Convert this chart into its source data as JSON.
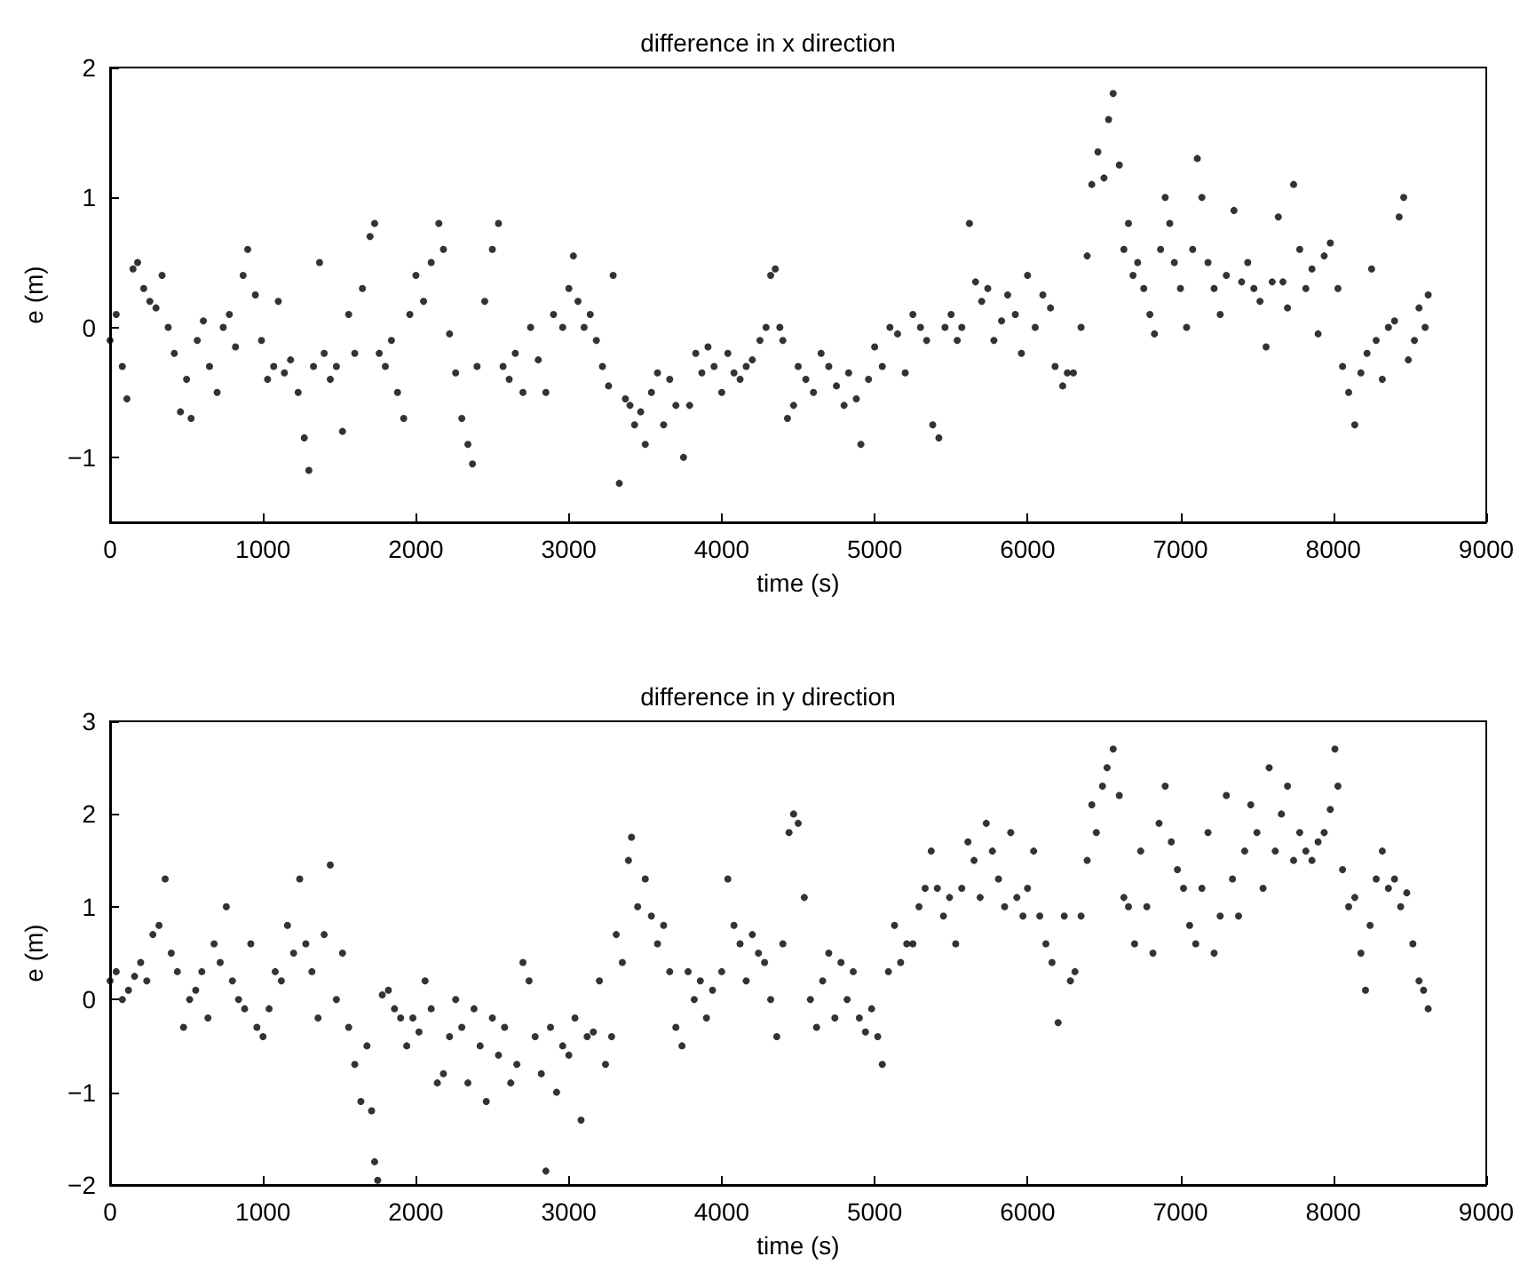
{
  "chart_data": [
    {
      "type": "scatter",
      "title": "difference in x direction",
      "xlabel": "time (s)",
      "ylabel": "e (m)",
      "xlim": [
        0,
        9000
      ],
      "xticks": [
        0,
        1000,
        2000,
        3000,
        4000,
        5000,
        6000,
        7000,
        8000,
        9000
      ],
      "ylim": [
        -1.5,
        2
      ],
      "yticks": [
        -1,
        0,
        1,
        2
      ],
      "grid": false,
      "marker": "circle",
      "series": [
        {
          "color": "#000000",
          "x": [
            0,
            40,
            80,
            110,
            150,
            180,
            220,
            260,
            300,
            340,
            380,
            420,
            460,
            500,
            530,
            570,
            610,
            650,
            700,
            740,
            780,
            820,
            870,
            900,
            950,
            990,
            1030,
            1070,
            1100,
            1140,
            1180,
            1230,
            1270,
            1300,
            1330,
            1370,
            1400,
            1440,
            1480,
            1520,
            1560,
            1600,
            1650,
            1700,
            1730,
            1760,
            1800,
            1840,
            1880,
            1920,
            1960,
            2000,
            2050,
            2100,
            2150,
            2180,
            2220,
            2260,
            2300,
            2340,
            2370,
            2400,
            2450,
            2500,
            2540,
            2570,
            2610,
            2650,
            2700,
            2750,
            2800,
            2850,
            2900,
            2960,
            3000,
            3030,
            3060,
            3100,
            3140,
            3180,
            3220,
            3260,
            3290,
            3330,
            3370,
            3400,
            3430,
            3470,
            3500,
            3540,
            3580,
            3620,
            3660,
            3700,
            3750,
            3790,
            3830,
            3870,
            3910,
            3950,
            4000,
            4040,
            4080,
            4120,
            4160,
            4200,
            4250,
            4290,
            4320,
            4350,
            4380,
            4400,
            4430,
            4470,
            4500,
            4550,
            4600,
            4650,
            4700,
            4750,
            4800,
            4830,
            4880,
            4910,
            4960,
            5000,
            5050,
            5100,
            5150,
            5200,
            5250,
            5300,
            5340,
            5380,
            5420,
            5460,
            5500,
            5540,
            5570,
            5620,
            5660,
            5700,
            5740,
            5780,
            5830,
            5870,
            5920,
            5960,
            6000,
            6050,
            6100,
            6150,
            6180,
            6230,
            6260,
            6300,
            6350,
            6390,
            6420,
            6460,
            6500,
            6530,
            6560,
            6600,
            6630,
            6660,
            6690,
            6720,
            6760,
            6800,
            6830,
            6870,
            6900,
            6930,
            6960,
            7000,
            7040,
            7080,
            7110,
            7140,
            7180,
            7220,
            7260,
            7300,
            7350,
            7400,
            7440,
            7480,
            7520,
            7560,
            7600,
            7640,
            7670,
            7700,
            7740,
            7780,
            7820,
            7860,
            7900,
            7940,
            7980,
            8030,
            8060,
            8100,
            8140,
            8180,
            8220,
            8250,
            8280,
            8320,
            8360,
            8400,
            8430,
            8460,
            8490,
            8530,
            8560,
            8600,
            8620
          ],
          "values": [
            -0.1,
            0.1,
            -0.3,
            -0.55,
            0.45,
            0.5,
            0.3,
            0.2,
            0.15,
            0.4,
            0.0,
            -0.2,
            -0.65,
            -0.4,
            -0.7,
            -0.1,
            0.05,
            -0.3,
            -0.5,
            0.0,
            0.1,
            -0.15,
            0.4,
            0.6,
            0.25,
            -0.1,
            -0.4,
            -0.3,
            0.2,
            -0.35,
            -0.25,
            -0.5,
            -0.85,
            -1.1,
            -0.3,
            0.5,
            -0.2,
            -0.4,
            -0.3,
            -0.8,
            0.1,
            -0.2,
            0.3,
            0.7,
            0.8,
            -0.2,
            -0.3,
            -0.1,
            -0.5,
            -0.7,
            0.1,
            0.4,
            0.2,
            0.5,
            0.8,
            0.6,
            -0.05,
            -0.35,
            -0.7,
            -0.9,
            -1.05,
            -0.3,
            0.2,
            0.6,
            0.8,
            -0.3,
            -0.4,
            -0.2,
            -0.5,
            0.0,
            -0.25,
            -0.5,
            0.1,
            0.0,
            0.3,
            0.55,
            0.2,
            0.0,
            0.1,
            -0.1,
            -0.3,
            -0.45,
            0.4,
            -1.2,
            -0.55,
            -0.6,
            -0.75,
            -0.65,
            -0.9,
            -0.5,
            -0.35,
            -0.75,
            -0.4,
            -0.6,
            -1.0,
            -0.6,
            -0.2,
            -0.35,
            -0.15,
            -0.3,
            -0.5,
            -0.2,
            -0.35,
            -0.4,
            -0.3,
            -0.25,
            -0.1,
            0.0,
            0.4,
            0.45,
            0.0,
            -0.1,
            -0.7,
            -0.6,
            -0.3,
            -0.4,
            -0.5,
            -0.2,
            -0.3,
            -0.45,
            -0.6,
            -0.35,
            -0.55,
            -0.9,
            -0.4,
            -0.15,
            -0.3,
            0.0,
            -0.05,
            -0.35,
            0.1,
            0.0,
            -0.1,
            -0.75,
            -0.85,
            0.0,
            0.1,
            -0.1,
            0.0,
            0.8,
            0.35,
            0.2,
            0.3,
            -0.1,
            0.05,
            0.25,
            0.1,
            -0.2,
            0.4,
            0.0,
            0.25,
            0.15,
            -0.3,
            -0.45,
            -0.35,
            -0.35,
            0.0,
            0.55,
            1.1,
            1.35,
            1.15,
            1.6,
            1.8,
            1.25,
            0.6,
            0.8,
            0.4,
            0.5,
            0.3,
            0.1,
            -0.05,
            0.6,
            1.0,
            0.8,
            0.5,
            0.3,
            0.0,
            0.6,
            1.3,
            1.0,
            0.5,
            0.3,
            0.1,
            0.4,
            0.9,
            0.35,
            0.5,
            0.3,
            0.2,
            -0.15,
            0.35,
            0.85,
            0.35,
            0.15,
            1.1,
            0.6,
            0.3,
            0.45,
            -0.05,
            0.55,
            0.65,
            0.3,
            -0.3,
            -0.5,
            -0.75,
            -0.35,
            -0.2,
            0.45,
            -0.1,
            -0.4,
            0.0,
            0.05,
            0.85,
            1.0,
            -0.25,
            -0.1,
            0.15,
            0.0,
            0.25
          ]
        }
      ]
    },
    {
      "type": "scatter",
      "title": "difference in y direction",
      "xlabel": "time (s)",
      "ylabel": "e (m)",
      "xlim": [
        0,
        9000
      ],
      "xticks": [
        0,
        1000,
        2000,
        3000,
        4000,
        5000,
        6000,
        7000,
        8000,
        9000
      ],
      "ylim": [
        -2,
        3
      ],
      "yticks": [
        -2,
        -1,
        0,
        1,
        2,
        3
      ],
      "grid": false,
      "marker": "circle",
      "series": [
        {
          "color": "#000000",
          "x": [
            0,
            40,
            80,
            120,
            160,
            200,
            240,
            280,
            320,
            360,
            400,
            440,
            480,
            520,
            560,
            600,
            640,
            680,
            720,
            760,
            800,
            840,
            880,
            920,
            960,
            1000,
            1040,
            1080,
            1120,
            1160,
            1200,
            1240,
            1280,
            1320,
            1360,
            1400,
            1440,
            1480,
            1520,
            1560,
            1600,
            1640,
            1680,
            1710,
            1730,
            1750,
            1780,
            1820,
            1860,
            1900,
            1940,
            1980,
            2020,
            2060,
            2100,
            2140,
            2180,
            2220,
            2260,
            2300,
            2340,
            2380,
            2420,
            2460,
            2500,
            2540,
            2580,
            2620,
            2660,
            2700,
            2740,
            2780,
            2820,
            2850,
            2880,
            2920,
            2960,
            3000,
            3040,
            3080,
            3120,
            3160,
            3200,
            3240,
            3280,
            3310,
            3350,
            3390,
            3410,
            3450,
            3500,
            3540,
            3580,
            3620,
            3660,
            3700,
            3740,
            3780,
            3820,
            3860,
            3900,
            3940,
            4000,
            4040,
            4080,
            4120,
            4160,
            4200,
            4240,
            4280,
            4320,
            4360,
            4400,
            4440,
            4470,
            4500,
            4540,
            4580,
            4620,
            4660,
            4700,
            4740,
            4780,
            4820,
            4860,
            4900,
            4940,
            4980,
            5020,
            5050,
            5090,
            5130,
            5170,
            5210,
            5250,
            5290,
            5330,
            5370,
            5410,
            5450,
            5490,
            5530,
            5570,
            5610,
            5650,
            5690,
            5730,
            5770,
            5810,
            5850,
            5890,
            5930,
            5970,
            6000,
            6040,
            6080,
            6120,
            6160,
            6200,
            6240,
            6280,
            6310,
            6350,
            6390,
            6420,
            6450,
            6490,
            6520,
            6560,
            6600,
            6630,
            6660,
            6700,
            6740,
            6780,
            6820,
            6860,
            6900,
            6940,
            6980,
            7020,
            7060,
            7100,
            7140,
            7180,
            7220,
            7260,
            7300,
            7340,
            7380,
            7420,
            7460,
            7500,
            7540,
            7580,
            7620,
            7660,
            7700,
            7740,
            7780,
            7820,
            7860,
            7900,
            7940,
            7980,
            8010,
            8030,
            8060,
            8100,
            8140,
            8180,
            8210,
            8240,
            8280,
            8320,
            8360,
            8400,
            8440,
            8480,
            8520,
            8560,
            8590,
            8620
          ],
          "values": [
            0.2,
            0.3,
            0.0,
            0.1,
            0.25,
            0.4,
            0.2,
            0.7,
            0.8,
            1.3,
            0.5,
            0.3,
            -0.3,
            0.0,
            0.1,
            0.3,
            -0.2,
            0.6,
            0.4,
            1.0,
            0.2,
            0.0,
            -0.1,
            0.6,
            -0.3,
            -0.4,
            -0.1,
            0.3,
            0.2,
            0.8,
            0.5,
            1.3,
            0.6,
            0.3,
            -0.2,
            0.7,
            1.45,
            0.0,
            0.5,
            -0.3,
            -0.7,
            -1.1,
            -0.5,
            -1.2,
            -1.75,
            -1.95,
            0.05,
            0.1,
            -0.1,
            -0.2,
            -0.5,
            -0.2,
            -0.35,
            0.2,
            -0.1,
            -0.9,
            -0.8,
            -0.4,
            0.0,
            -0.3,
            -0.9,
            -0.1,
            -0.5,
            -1.1,
            -0.2,
            -0.6,
            -0.3,
            -0.9,
            -0.7,
            0.4,
            0.2,
            -0.4,
            -0.8,
            -1.85,
            -0.3,
            -1.0,
            -0.5,
            -0.6,
            -0.2,
            -1.3,
            -0.4,
            -0.35,
            0.2,
            -0.7,
            -0.4,
            0.7,
            0.4,
            1.5,
            1.75,
            1.0,
            1.3,
            0.9,
            0.6,
            0.8,
            0.3,
            -0.3,
            -0.5,
            0.3,
            0.0,
            0.2,
            -0.2,
            0.1,
            0.3,
            1.3,
            0.8,
            0.6,
            0.2,
            0.7,
            0.5,
            0.4,
            0.0,
            -0.4,
            0.6,
            1.8,
            2.0,
            1.9,
            1.1,
            0.0,
            -0.3,
            0.2,
            0.5,
            -0.2,
            0.4,
            0.0,
            0.3,
            -0.2,
            -0.35,
            -0.1,
            -0.4,
            -0.7,
            0.3,
            0.8,
            0.4,
            0.6,
            0.6,
            1.0,
            1.2,
            1.6,
            1.2,
            0.9,
            1.1,
            0.6,
            1.2,
            1.7,
            1.5,
            1.1,
            1.9,
            1.6,
            1.3,
            1.0,
            1.8,
            1.1,
            0.9,
            1.2,
            1.6,
            0.9,
            0.6,
            0.4,
            -0.25,
            0.9,
            0.2,
            0.3,
            0.9,
            1.5,
            2.1,
            1.8,
            2.3,
            2.5,
            2.7,
            2.2,
            1.1,
            1.0,
            0.6,
            1.6,
            1.0,
            0.5,
            1.9,
            2.3,
            1.7,
            1.4,
            1.2,
            0.8,
            0.6,
            1.2,
            1.8,
            0.5,
            0.9,
            2.2,
            1.3,
            0.9,
            1.6,
            2.1,
            1.8,
            1.2,
            2.5,
            1.6,
            2.0,
            2.3,
            1.5,
            1.8,
            1.6,
            1.5,
            1.7,
            1.8,
            2.05,
            2.7,
            2.3,
            1.4,
            1.0,
            1.1,
            0.5,
            0.1,
            0.8,
            1.3,
            1.6,
            1.2,
            1.3,
            1.0,
            1.15,
            0.6,
            0.2,
            0.1,
            -0.1
          ]
        }
      ]
    }
  ]
}
